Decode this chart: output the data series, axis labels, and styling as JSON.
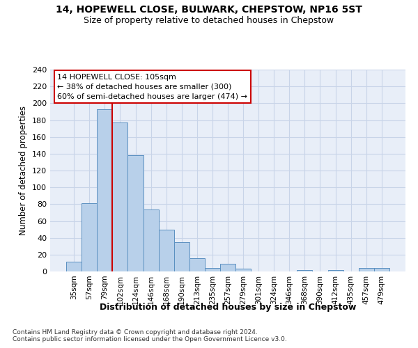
{
  "title": "14, HOPEWELL CLOSE, BULWARK, CHEPSTOW, NP16 5ST",
  "subtitle": "Size of property relative to detached houses in Chepstow",
  "xlabel": "Distribution of detached houses by size in Chepstow",
  "ylabel": "Number of detached properties",
  "bar_categories": [
    "35sqm",
    "57sqm",
    "79sqm",
    "102sqm",
    "124sqm",
    "146sqm",
    "168sqm",
    "190sqm",
    "213sqm",
    "235sqm",
    "257sqm",
    "279sqm",
    "301sqm",
    "324sqm",
    "346sqm",
    "368sqm",
    "390sqm",
    "412sqm",
    "435sqm",
    "457sqm",
    "479sqm"
  ],
  "bar_values": [
    12,
    81,
    193,
    177,
    138,
    74,
    50,
    35,
    16,
    4,
    9,
    3,
    0,
    0,
    0,
    2,
    0,
    2,
    0,
    4,
    4
  ],
  "bar_color": "#b8d0ea",
  "bar_edge_color": "#5a8fc0",
  "grid_color": "#c8d4e8",
  "background_color": "#e8eef8",
  "vline_x_index": 3,
  "vline_color": "#cc0000",
  "annotation_lines": [
    "14 HOPEWELL CLOSE: 105sqm",
    "← 38% of detached houses are smaller (300)",
    "60% of semi-detached houses are larger (474) →"
  ],
  "ylim": [
    0,
    240
  ],
  "yticks": [
    0,
    20,
    40,
    60,
    80,
    100,
    120,
    140,
    160,
    180,
    200,
    220,
    240
  ],
  "footnote1": "Contains HM Land Registry data © Crown copyright and database right 2024.",
  "footnote2": "Contains public sector information licensed under the Open Government Licence v3.0."
}
